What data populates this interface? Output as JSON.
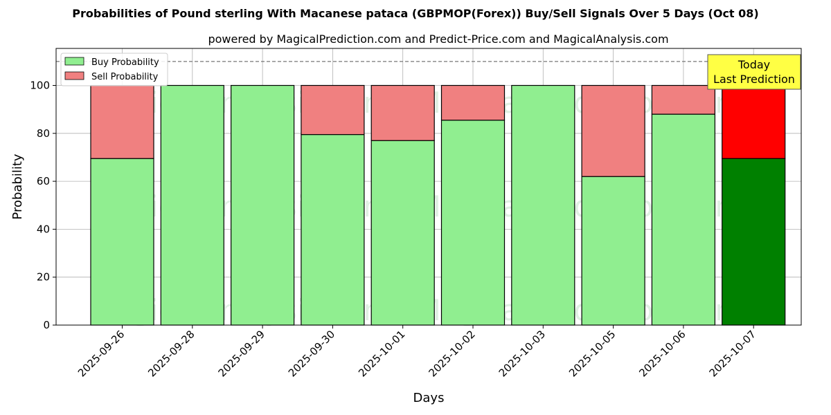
{
  "chart_data": {
    "type": "bar",
    "stacked": true,
    "title": "Probabilities of Pound sterling With Macanese pataca (GBPMOP(Forex)) Buy/Sell Signals Over 5 Days (Oct 08)",
    "subtitle": "powered by MagicalPrediction.com and Predict-Price.com and MagicalAnalysis.com",
    "xlabel": "Days",
    "ylabel": "Probability",
    "ylim": [
      0,
      115
    ],
    "yticks": [
      0,
      20,
      40,
      60,
      80,
      100
    ],
    "reference_line": 110,
    "grid": true,
    "legend_position": "top-left",
    "categories": [
      "2025-09-26",
      "2025-09-28",
      "2025-09-29",
      "2025-09-30",
      "2025-10-01",
      "2025-10-02",
      "2025-10-03",
      "2025-10-05",
      "2025-10-06",
      "2025-10-07"
    ],
    "series": [
      {
        "name": "Buy Probability",
        "color": "#90ee90",
        "values": [
          69.5,
          100,
          100,
          79.5,
          77,
          85.5,
          100,
          62,
          88,
          69.5
        ]
      },
      {
        "name": "Sell Probability",
        "color": "#f08080",
        "values": [
          30.5,
          0,
          0,
          20.5,
          23,
          14.5,
          0,
          38,
          12,
          30.5
        ]
      }
    ],
    "highlight": {
      "index": 9,
      "buy_color": "#008000",
      "sell_color": "#ff0000"
    },
    "annotation": {
      "line1": "Today",
      "line2": "Last Prediction",
      "background": "#ffff44"
    },
    "watermarks": [
      "MagicalAnalysis.com",
      "MagicalPrediction.com"
    ]
  }
}
